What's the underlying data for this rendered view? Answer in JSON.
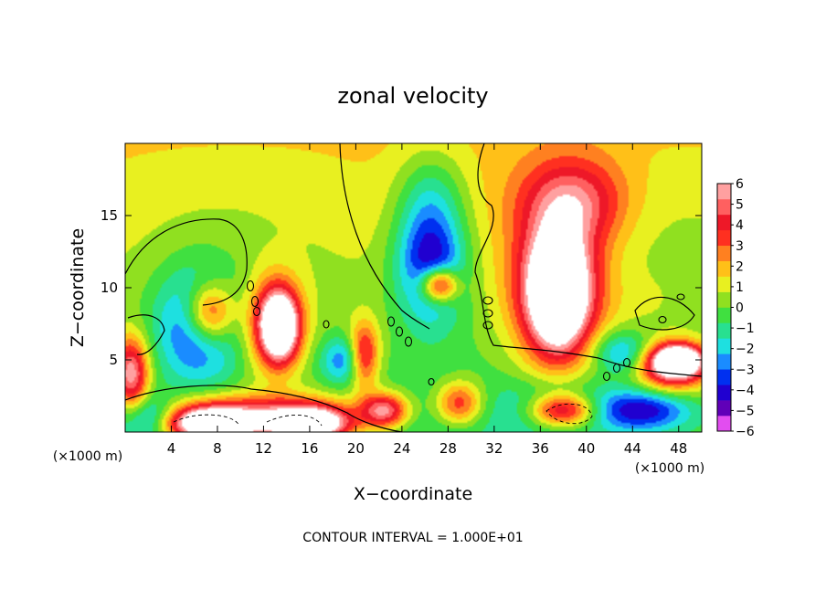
{
  "chart_data": {
    "type": "heatmap",
    "title": "zonal velocity",
    "xlabel": "X−coordinate",
    "ylabel": "Z−coordinate",
    "x_unit_left": "(×1000 m)",
    "x_unit_right": "(×1000 m)",
    "footer": "CONTOUR INTERVAL = 1.000E+01",
    "xlim": [
      0,
      50
    ],
    "ylim": [
      0,
      20
    ],
    "x_ticks": [
      4,
      8,
      12,
      16,
      20,
      24,
      28,
      32,
      36,
      40,
      44,
      48
    ],
    "x_tick_labels": [
      "4",
      "8",
      "12",
      "16",
      "20",
      "24",
      "28",
      "32",
      "36",
      "40",
      "44",
      "48"
    ],
    "y_ticks": [
      5,
      10,
      15
    ],
    "y_tick_labels": [
      "5",
      "10",
      "15"
    ],
    "colorbar": {
      "min": -6,
      "max": 6,
      "tick_values": [
        6,
        5,
        4,
        3,
        2,
        1,
        0,
        -1,
        -2,
        -3,
        -4,
        -5,
        -6
      ],
      "tick_labels": [
        "6",
        "5",
        "4",
        "3",
        "2",
        "1",
        "0",
        "−1",
        "−2",
        "−3",
        "−4",
        "−5",
        "−6"
      ],
      "colors": [
        "#e24df0",
        "#6000b8",
        "#2000d0",
        "#0030f0",
        "#1a8cff",
        "#1ee0e0",
        "#28e090",
        "#40e040",
        "#90e020",
        "#e8f020",
        "#ffc018",
        "#ff8020",
        "#ff3020",
        "#ee1828",
        "#ff6060",
        "#ffa0a0"
      ]
    },
    "anomalies": [
      {
        "x": 6.5,
        "z": 7.5,
        "rx": 3.5,
        "rz": 3.8,
        "value": -5
      },
      {
        "x": 7.3,
        "z": 8.2,
        "rx": 2.2,
        "rz": 2.2,
        "value": 6.5
      },
      {
        "x": 13,
        "z": 7.5,
        "rx": 2.4,
        "rz": 3.2,
        "value": 5
      },
      {
        "x": 13.4,
        "z": 7.3,
        "rx": 1.5,
        "rz": 2.2,
        "value": 7
      },
      {
        "x": 19,
        "z": 5,
        "rx": 2,
        "rz": 1.6,
        "value": -3
      },
      {
        "x": 20.7,
        "z": 5.3,
        "rx": 1.3,
        "rz": 2.2,
        "value": 5
      },
      {
        "x": 26.5,
        "z": 12,
        "rx": 3,
        "rz": 4.2,
        "value": -5.5
      },
      {
        "x": 27.2,
        "z": 10.2,
        "rx": 1.6,
        "rz": 1.2,
        "value": 6.5
      },
      {
        "x": 37.5,
        "z": 10,
        "rx": 4,
        "rz": 5.5,
        "value": 5
      },
      {
        "x": 37.5,
        "z": 9.5,
        "rx": 2.5,
        "rz": 3.8,
        "value": 7
      },
      {
        "x": 39,
        "z": 16,
        "rx": 4.5,
        "rz": 3,
        "value": 3.5
      },
      {
        "x": 26.5,
        "z": 17,
        "rx": 3,
        "rz": 3,
        "value": -1.5
      },
      {
        "x": 8,
        "z": 1,
        "rx": 5,
        "rz": 1.5,
        "value": 5
      },
      {
        "x": 7.5,
        "z": 0.5,
        "rx": 3.5,
        "rz": 1,
        "value": 7
      },
      {
        "x": 15.5,
        "z": 1,
        "rx": 5,
        "rz": 1.5,
        "value": 5
      },
      {
        "x": 16,
        "z": 0.5,
        "rx": 3,
        "rz": 1,
        "value": 7
      },
      {
        "x": 38,
        "z": 1.7,
        "rx": 5,
        "rz": 1.8,
        "value": -3
      },
      {
        "x": 38,
        "z": 1.5,
        "rx": 3,
        "rz": 1.2,
        "value": 7
      },
      {
        "x": 47.5,
        "z": 4.5,
        "rx": 3,
        "rz": 1.6,
        "value": 6
      },
      {
        "x": 48,
        "z": 5,
        "rx": 2,
        "rz": 1,
        "value": 7
      },
      {
        "x": 45,
        "z": 1.5,
        "rx": 4,
        "rz": 1.4,
        "value": -4
      },
      {
        "x": 43,
        "z": 5.5,
        "rx": 2.5,
        "rz": 1.5,
        "value": -3
      },
      {
        "x": 0.5,
        "z": 4,
        "rx": 1.5,
        "rz": 2.5,
        "value": 6
      },
      {
        "x": 2,
        "z": 1,
        "rx": 2.5,
        "rz": 1.5,
        "value": -3
      },
      {
        "x": 22.5,
        "z": 1.5,
        "rx": 2,
        "rz": 1.2,
        "value": 5.5
      },
      {
        "x": 29,
        "z": 2,
        "rx": 2,
        "rz": 1.5,
        "value": 4
      },
      {
        "x": 45,
        "z": 9,
        "rx": 5,
        "rz": 2.5,
        "value": 0.5
      }
    ]
  }
}
